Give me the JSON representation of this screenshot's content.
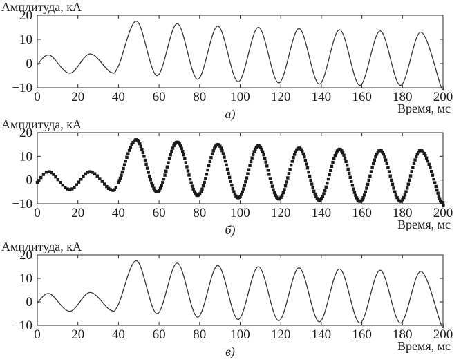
{
  "chart_data": [
    {
      "type": "line",
      "panel_label": "а)",
      "ylabel": "Амплитуда, кА",
      "xlabel": "Время, мс",
      "xlim": [
        0,
        200
      ],
      "ylim": [
        -10,
        20
      ],
      "xticks": [
        0,
        20,
        40,
        60,
        80,
        100,
        120,
        140,
        160,
        180,
        200
      ],
      "yticks": [
        -10,
        0,
        10,
        20
      ],
      "grid": false,
      "series": [
        {
          "style": "line",
          "x": [
            0,
            6,
            16,
            26,
            36,
            40,
            49,
            59,
            69,
            79,
            89,
            99,
            109,
            119,
            129,
            139,
            149,
            159,
            169,
            179,
            189,
            199,
            200
          ],
          "values": [
            -0.5,
            3.5,
            -4,
            4,
            -3.5,
            -1,
            17.5,
            -5,
            16.5,
            -6.5,
            15.5,
            -7.5,
            15,
            -8,
            14.5,
            -8.5,
            14,
            -9,
            13.5,
            -9,
            13,
            -9.5,
            -9
          ]
        }
      ]
    },
    {
      "type": "scatter",
      "panel_label": "б)",
      "ylabel": "Амплитуда, кА",
      "xlabel": "Время, мс",
      "xlim": [
        0,
        200
      ],
      "ylim": [
        -10,
        20
      ],
      "xticks": [
        0,
        20,
        40,
        60,
        80,
        100,
        120,
        140,
        160,
        180,
        200
      ],
      "yticks": [
        -10,
        0,
        10,
        20
      ],
      "grid": false,
      "series": [
        {
          "style": "markers",
          "x": [
            0,
            6,
            16,
            26,
            36,
            40,
            49,
            59,
            69,
            79,
            89,
            99,
            109,
            119,
            129,
            139,
            149,
            159,
            169,
            179,
            189,
            199,
            200
          ],
          "values": [
            -1,
            3.5,
            -4,
            3.5,
            -4,
            -1,
            17,
            -5,
            16,
            -6.5,
            15,
            -7.5,
            14.5,
            -8,
            13.5,
            -8.5,
            13,
            -9,
            12.5,
            -9,
            12.5,
            -9.5,
            -9.5
          ]
        }
      ]
    },
    {
      "type": "line",
      "panel_label": "в)",
      "ylabel": "Амплитуда, кА",
      "xlabel": "Время, мс",
      "xlim": [
        0,
        200
      ],
      "ylim": [
        -10,
        20
      ],
      "xticks": [
        0,
        20,
        40,
        60,
        80,
        100,
        120,
        140,
        160,
        180,
        200
      ],
      "yticks": [
        -10,
        0,
        10,
        20
      ],
      "grid": false,
      "series": [
        {
          "style": "line",
          "x": [
            0,
            6,
            16,
            26,
            36,
            40,
            49,
            59,
            69,
            79,
            89,
            99,
            109,
            119,
            129,
            139,
            149,
            159,
            169,
            179,
            189,
            199,
            200
          ],
          "values": [
            -0.5,
            3.5,
            -4,
            4,
            -3.5,
            -1,
            17.5,
            -5,
            16.5,
            -6.5,
            15.5,
            -7.5,
            15,
            -8,
            14.5,
            -8.5,
            14,
            -9,
            13.5,
            -9,
            13,
            -9.5,
            -9
          ]
        }
      ]
    }
  ]
}
